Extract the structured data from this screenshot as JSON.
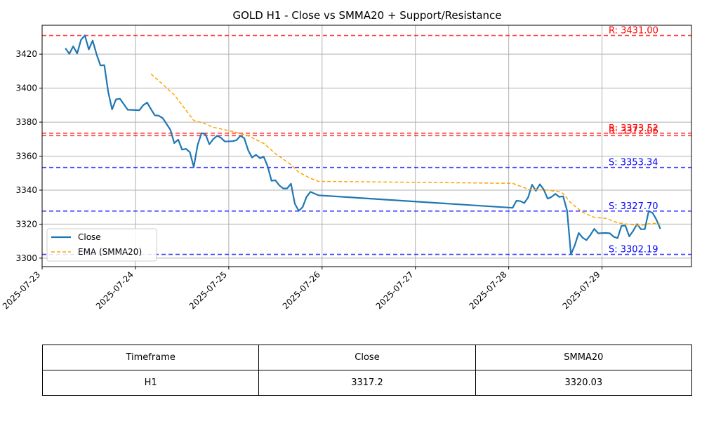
{
  "chart_data": {
    "type": "line",
    "title": "GOLD H1 - Close vs SMMA20 + Support/Resistance",
    "xlabel": "",
    "ylabel": "",
    "xlim": [
      "2025-07-23 00:00",
      "2025-07-29 23:00"
    ],
    "ylim": [
      3295,
      3437
    ],
    "grid": true,
    "legend": "lower-left",
    "x_ticks": [
      "2025-07-23",
      "2025-07-24",
      "2025-07-25",
      "2025-07-26",
      "2025-07-27",
      "2025-07-28",
      "2025-07-29"
    ],
    "y_ticks": [
      3300,
      3320,
      3340,
      3360,
      3380,
      3400,
      3420
    ],
    "series": [
      {
        "name": "Close",
        "color": "#1f77b4",
        "style": "solid",
        "points": [
          [
            "2025-07-23 06:00",
            3423.5
          ],
          [
            "2025-07-23 07:00",
            3420.2
          ],
          [
            "2025-07-23 08:00",
            3424.6
          ],
          [
            "2025-07-23 09:00",
            3420.4
          ],
          [
            "2025-07-23 10:00",
            3428.4
          ],
          [
            "2025-07-23 11:00",
            3431.0
          ],
          [
            "2025-07-23 12:00",
            3422.8
          ],
          [
            "2025-07-23 13:00",
            3428.0
          ],
          [
            "2025-07-23 14:00",
            3420.0
          ],
          [
            "2025-07-23 15:00",
            3413.4
          ],
          [
            "2025-07-23 16:00",
            3413.5
          ],
          [
            "2025-07-23 17:00",
            3397.7
          ],
          [
            "2025-07-23 18:00",
            3387.5
          ],
          [
            "2025-07-23 19:00",
            3393.4
          ],
          [
            "2025-07-23 20:00",
            3393.8
          ],
          [
            "2025-07-23 21:00",
            3390.6
          ],
          [
            "2025-07-23 22:00",
            3387.3
          ],
          [
            "2025-07-24 01:00",
            3387.0
          ],
          [
            "2025-07-24 02:00",
            3390.0
          ],
          [
            "2025-07-24 03:00",
            3391.5
          ],
          [
            "2025-07-24 04:00",
            3387.6
          ],
          [
            "2025-07-24 05:00",
            3384.0
          ],
          [
            "2025-07-24 06:00",
            3383.8
          ],
          [
            "2025-07-24 07:00",
            3382.4
          ],
          [
            "2025-07-24 08:00",
            3379.0
          ],
          [
            "2025-07-24 09:00",
            3375.4
          ],
          [
            "2025-07-24 10:00",
            3367.7
          ],
          [
            "2025-07-24 11:00",
            3369.7
          ],
          [
            "2025-07-24 12:00",
            3363.8
          ],
          [
            "2025-07-24 13:00",
            3364.3
          ],
          [
            "2025-07-24 14:00",
            3362.3
          ],
          [
            "2025-07-24 15:00",
            3353.6
          ],
          [
            "2025-07-24 16:00",
            3366.7
          ],
          [
            "2025-07-24 17:00",
            3373.5
          ],
          [
            "2025-07-24 18:00",
            3373.0
          ],
          [
            "2025-07-24 19:00",
            3367.0
          ],
          [
            "2025-07-24 20:00",
            3370.0
          ],
          [
            "2025-07-24 21:00",
            3372.0
          ],
          [
            "2025-07-24 22:00",
            3370.8
          ],
          [
            "2025-07-24 23:00",
            3368.6
          ],
          [
            "2025-07-25 01:00",
            3368.8
          ],
          [
            "2025-07-25 02:00",
            3369.4
          ],
          [
            "2025-07-25 03:00",
            3372.0
          ],
          [
            "2025-07-25 04:00",
            3370.5
          ],
          [
            "2025-07-25 05:00",
            3363.4
          ],
          [
            "2025-07-25 06:00",
            3359.2
          ],
          [
            "2025-07-25 07:00",
            3360.8
          ],
          [
            "2025-07-25 08:00",
            3358.8
          ],
          [
            "2025-07-25 09:00",
            3359.6
          ],
          [
            "2025-07-25 10:00",
            3354.0
          ],
          [
            "2025-07-25 11:00",
            3345.5
          ],
          [
            "2025-07-25 12:00",
            3345.8
          ],
          [
            "2025-07-25 13:00",
            3342.8
          ],
          [
            "2025-07-25 14:00",
            3341.0
          ],
          [
            "2025-07-25 15:00",
            3341.0
          ],
          [
            "2025-07-25 16:00",
            3343.8
          ],
          [
            "2025-07-25 17:00",
            3332.0
          ],
          [
            "2025-07-25 18:00",
            3327.8
          ],
          [
            "2025-07-25 19:00",
            3330.0
          ],
          [
            "2025-07-25 20:00",
            3336.0
          ],
          [
            "2025-07-25 21:00",
            3339.0
          ],
          [
            "2025-07-25 22:00",
            3338.0
          ],
          [
            "2025-07-25 23:00",
            3337.0
          ],
          [
            "2025-07-28 01:00",
            3329.6
          ],
          [
            "2025-07-28 02:00",
            3333.8
          ],
          [
            "2025-07-28 03:00",
            3333.5
          ],
          [
            "2025-07-28 04:00",
            3332.4
          ],
          [
            "2025-07-28 05:00",
            3335.8
          ],
          [
            "2025-07-28 06:00",
            3343.2
          ],
          [
            "2025-07-28 07:00",
            3339.6
          ],
          [
            "2025-07-28 08:00",
            3343.4
          ],
          [
            "2025-07-28 09:00",
            3340.4
          ],
          [
            "2025-07-28 10:00",
            3335.0
          ],
          [
            "2025-07-28 11:00",
            3336.0
          ],
          [
            "2025-07-28 12:00",
            3337.8
          ],
          [
            "2025-07-28 13:00",
            3336.0
          ],
          [
            "2025-07-28 14:00",
            3336.4
          ],
          [
            "2025-07-28 15:00",
            3328.0
          ],
          [
            "2025-07-28 16:00",
            3302.2
          ],
          [
            "2025-07-28 17:00",
            3307.6
          ],
          [
            "2025-07-28 18:00",
            3314.8
          ],
          [
            "2025-07-28 19:00",
            3312.0
          ],
          [
            "2025-07-28 20:00",
            3310.6
          ],
          [
            "2025-07-28 21:00",
            3313.6
          ],
          [
            "2025-07-28 22:00",
            3317.2
          ],
          [
            "2025-07-28 23:00",
            3314.6
          ],
          [
            "2025-07-29 01:00",
            3314.8
          ],
          [
            "2025-07-29 02:00",
            3314.6
          ],
          [
            "2025-07-29 03:00",
            3312.6
          ],
          [
            "2025-07-29 04:00",
            3311.8
          ],
          [
            "2025-07-29 05:00",
            3319.0
          ],
          [
            "2025-07-29 06:00",
            3319.2
          ],
          [
            "2025-07-29 07:00",
            3312.8
          ],
          [
            "2025-07-29 08:00",
            3316.0
          ],
          [
            "2025-07-29 09:00",
            3320.0
          ],
          [
            "2025-07-29 10:00",
            3317.0
          ],
          [
            "2025-07-29 11:00",
            3317.0
          ],
          [
            "2025-07-29 12:00",
            3327.7
          ],
          [
            "2025-07-29 13:00",
            3326.6
          ],
          [
            "2025-07-29 14:00",
            3322.6
          ],
          [
            "2025-07-29 15:00",
            3317.2
          ]
        ]
      },
      {
        "name": "EMA (SMMA20)",
        "color": "#ffa500",
        "style": "dashed",
        "points": [
          [
            "2025-07-24 04:00",
            3408.3
          ],
          [
            "2025-07-24 07:00",
            3402.3
          ],
          [
            "2025-07-24 10:00",
            3396.0
          ],
          [
            "2025-07-24 13:00",
            3387.0
          ],
          [
            "2025-07-24 15:00",
            3381.0
          ],
          [
            "2025-07-24 18:00",
            3379.0
          ],
          [
            "2025-07-24 20:00",
            3377.0
          ],
          [
            "2025-07-25 01:00",
            3374.5
          ],
          [
            "2025-07-25 05:00",
            3372.0
          ],
          [
            "2025-07-25 09:00",
            3367.5
          ],
          [
            "2025-07-25 12:00",
            3361.5
          ],
          [
            "2025-07-25 16:00",
            3355.0
          ],
          [
            "2025-07-25 18:00",
            3350.5
          ],
          [
            "2025-07-25 21:00",
            3347.0
          ],
          [
            "2025-07-25 23:00",
            3345.2
          ],
          [
            "2025-07-28 01:00",
            3344.0
          ],
          [
            "2025-07-28 04:00",
            3341.5
          ],
          [
            "2025-07-28 05:00",
            3340.5
          ],
          [
            "2025-07-28 10:00",
            3340.0
          ],
          [
            "2025-07-28 13:00",
            3339.0
          ],
          [
            "2025-07-28 14:00",
            3338.0
          ],
          [
            "2025-07-28 16:00",
            3332.5
          ],
          [
            "2025-07-28 19:00",
            3327.0
          ],
          [
            "2025-07-28 22:00",
            3324.0
          ],
          [
            "2025-07-29 01:00",
            3323.4
          ],
          [
            "2025-07-29 04:00",
            3320.8
          ],
          [
            "2025-07-29 07:00",
            3319.8
          ],
          [
            "2025-07-29 10:00",
            3319.2
          ],
          [
            "2025-07-29 12:00",
            3320.2
          ],
          [
            "2025-07-29 14:00",
            3320.5
          ],
          [
            "2025-07-29 15:00",
            3320.03
          ]
        ]
      }
    ],
    "levels": [
      {
        "kind": "resistance",
        "value": 3431.0,
        "label": "R: 3431.00",
        "color": "#ff0000"
      },
      {
        "kind": "resistance",
        "value": 3373.52,
        "label": "R: 3373.52",
        "color": "#ff0000"
      },
      {
        "kind": "resistance",
        "value": 3372.06,
        "label": "R: 3372.06",
        "color": "#ff0000"
      },
      {
        "kind": "support",
        "value": 3353.34,
        "label": "S: 3353.34",
        "color": "#0000ff"
      },
      {
        "kind": "support",
        "value": 3327.7,
        "label": "S: 3327.70",
        "color": "#0000ff"
      },
      {
        "kind": "support",
        "value": 3302.19,
        "label": "S: 3302.19",
        "color": "#0000ff"
      }
    ]
  },
  "table": {
    "headers": [
      "Timeframe",
      "Close",
      "SMMA20"
    ],
    "rows": [
      [
        "H1",
        "3317.2",
        "3320.03"
      ]
    ]
  }
}
